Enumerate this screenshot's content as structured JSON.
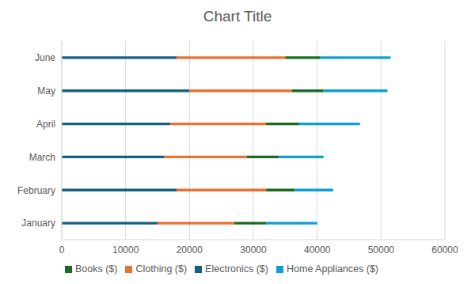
{
  "chart_data": {
    "type": "bar",
    "title": "Chart Title",
    "orientation": "horizontal",
    "stacked": true,
    "grid": true,
    "legend": "bottom",
    "categories": [
      "January",
      "February",
      "March",
      "April",
      "May",
      "June"
    ],
    "series": [
      {
        "name": "Electronics ($)",
        "color": "#156082",
        "values": [
          15000,
          18000,
          16000,
          17000,
          20000,
          18000
        ]
      },
      {
        "name": "Clothing ($)",
        "color": "#E97132",
        "values": [
          12000,
          14000,
          13000,
          15000,
          16000,
          17000
        ]
      },
      {
        "name": "Books ($)",
        "color": "#196B24",
        "values": [
          5000,
          4500,
          5000,
          5200,
          5000,
          5500
        ]
      },
      {
        "name": "Home Appliances ($)",
        "color": "#0F9ED5",
        "values": [
          8000,
          6000,
          7000,
          9500,
          10000,
          11000
        ]
      }
    ],
    "xlim": [
      0,
      60000
    ],
    "xticks": [
      0,
      10000,
      20000,
      30000,
      40000,
      50000,
      60000
    ]
  }
}
